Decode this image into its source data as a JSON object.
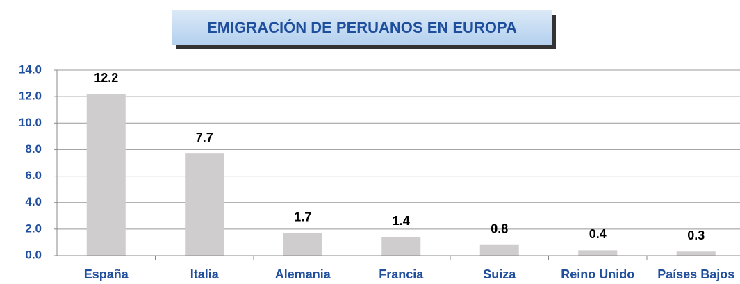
{
  "chart_data": {
    "type": "bar",
    "title": "EMIGRACIÓN DE PERUANOS EN EUROPA",
    "categories": [
      "España",
      "Italia",
      "Alemania",
      "Francia",
      "Suiza",
      "Reino Unido",
      "Países Bajos"
    ],
    "values": [
      12.2,
      7.7,
      1.7,
      1.4,
      0.8,
      0.4,
      0.3
    ],
    "color": "#cfcdcd",
    "ylim": [
      0,
      14
    ],
    "yticks": [
      {
        "value": 0,
        "label": "0.0"
      },
      {
        "value": 2,
        "label": "2.0"
      },
      {
        "value": 4,
        "label": "4.0"
      },
      {
        "value": 6,
        "label": "6.0"
      },
      {
        "value": 8,
        "label": "8.0"
      },
      {
        "value": 10,
        "label": "10.0"
      },
      {
        "value": 12,
        "label": "12.0"
      },
      {
        "value": 14,
        "label": "14.0"
      }
    ],
    "grid": true
  }
}
